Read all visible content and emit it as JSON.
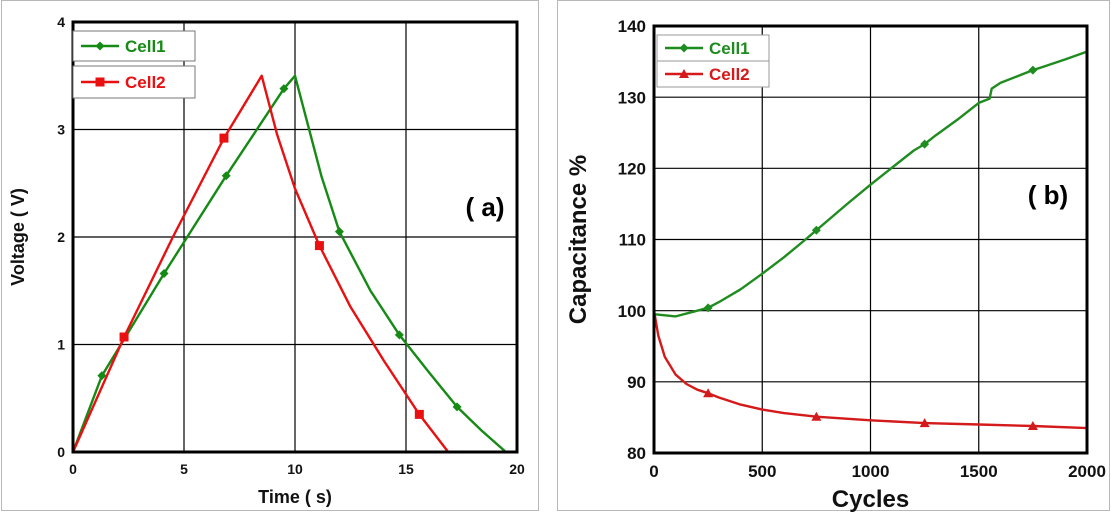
{
  "chart_data": [
    {
      "id": "a",
      "type": "line",
      "panel_label": "( a)",
      "xlabel": "Time ( s)",
      "ylabel": "Voltage ( V)",
      "xlim": [
        0,
        20
      ],
      "ylim": [
        0,
        4
      ],
      "xticks": [
        0,
        5,
        10,
        15,
        20
      ],
      "yticks": [
        0,
        1,
        2,
        3,
        4
      ],
      "grid": true,
      "legend_position": "top-left, stacked in two boxes",
      "series": [
        {
          "name": "Cell1",
          "color": "#158a15",
          "marker": "diamond",
          "x": [
            0,
            1.3,
            4.1,
            6.9,
            9.5,
            10.0,
            11.2,
            12.0,
            13.4,
            14.7,
            16.0,
            17.3,
            18.4,
            19.5
          ],
          "y": [
            0,
            0.71,
            1.66,
            2.57,
            3.38,
            3.5,
            2.56,
            2.05,
            1.5,
            1.09,
            0.75,
            0.42,
            0.2,
            0
          ],
          "marker_x": [
            1.3,
            4.1,
            6.9,
            9.5,
            12.0,
            14.7,
            17.3
          ],
          "marker_y": [
            0.71,
            1.66,
            2.57,
            3.38,
            2.05,
            1.09,
            0.42
          ]
        },
        {
          "name": "Cell2",
          "color": "#e81010",
          "marker": "square",
          "x": [
            0,
            2.3,
            4.5,
            6.8,
            8.5,
            9.2,
            10.0,
            11.1,
            12.5,
            14.0,
            15.6,
            16.9
          ],
          "y": [
            0,
            1.07,
            2.0,
            2.92,
            3.5,
            2.95,
            2.45,
            1.92,
            1.35,
            0.85,
            0.35,
            0
          ],
          "marker_x": [
            2.3,
            6.8,
            11.1,
            15.6
          ],
          "marker_y": [
            1.07,
            2.92,
            1.92,
            0.35
          ]
        }
      ]
    },
    {
      "id": "b",
      "type": "line",
      "panel_label": "( b)",
      "xlabel": "Cycles",
      "ylabel": "Capacitance %",
      "xlim": [
        0,
        2000
      ],
      "ylim": [
        80,
        140
      ],
      "xticks": [
        0,
        500,
        1000,
        1500,
        2000
      ],
      "yticks": [
        80,
        90,
        100,
        110,
        120,
        130,
        140
      ],
      "grid": true,
      "legend_position": "top-left",
      "series": [
        {
          "name": "Cell1",
          "color": "#1f8c1f",
          "marker": "diamond",
          "x": [
            0,
            100,
            200,
            250,
            300,
            400,
            500,
            600,
            700,
            750,
            800,
            900,
            1000,
            1100,
            1200,
            1250,
            1300,
            1400,
            1500,
            1550,
            1560,
            1600,
            1700,
            1750,
            1800,
            1900,
            2000
          ],
          "y": [
            99.5,
            99.2,
            100.0,
            100.4,
            101.2,
            103.0,
            105.2,
            107.5,
            110.0,
            111.3,
            112.6,
            115.2,
            117.7,
            120.1,
            122.5,
            123.4,
            124.6,
            126.8,
            129.2,
            129.8,
            131.2,
            132.0,
            133.2,
            133.8,
            134.3,
            135.3,
            136.4
          ],
          "marker_x": [
            250,
            750,
            1250,
            1750
          ],
          "marker_y": [
            100.4,
            111.3,
            123.4,
            133.8
          ]
        },
        {
          "name": "Cell2",
          "color": "#d41a1a",
          "marker": "triangle",
          "x": [
            0,
            20,
            50,
            100,
            150,
            200,
            250,
            300,
            400,
            500,
            600,
            750,
            1000,
            1250,
            1500,
            1750,
            2000
          ],
          "y": [
            100.0,
            96.5,
            93.5,
            91.0,
            89.7,
            88.9,
            88.4,
            87.8,
            86.8,
            86.1,
            85.6,
            85.1,
            84.6,
            84.2,
            84.0,
            83.8,
            83.5
          ],
          "marker_x": [
            250,
            750,
            1250,
            1750
          ],
          "marker_y": [
            88.4,
            85.1,
            84.2,
            83.8
          ]
        }
      ]
    }
  ]
}
